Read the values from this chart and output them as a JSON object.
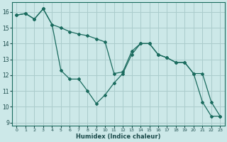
{
  "xlabel": "Humidex (Indice chaleur)",
  "background_color": "#cce8e8",
  "grid_color": "#aacccc",
  "line_color": "#1a6b5e",
  "xlim": [
    -0.5,
    23.5
  ],
  "ylim": [
    8.8,
    16.6
  ],
  "yticks": [
    9,
    10,
    11,
    12,
    13,
    14,
    15,
    16
  ],
  "xticks": [
    0,
    1,
    2,
    3,
    4,
    5,
    6,
    7,
    8,
    9,
    10,
    11,
    12,
    13,
    14,
    15,
    16,
    17,
    18,
    19,
    20,
    21,
    22,
    23
  ],
  "line1_x": [
    0,
    1,
    2,
    3,
    4,
    5,
    6,
    7,
    8,
    9,
    10,
    11,
    12,
    13,
    14,
    15,
    16,
    17,
    18,
    19,
    20,
    21,
    22,
    23
  ],
  "line1_y": [
    15.8,
    15.9,
    15.55,
    16.2,
    15.2,
    15.0,
    14.75,
    14.6,
    14.5,
    14.3,
    14.1,
    12.1,
    12.2,
    13.5,
    14.0,
    14.0,
    13.3,
    13.1,
    12.8,
    12.8,
    12.1,
    12.1,
    10.3,
    9.4
  ],
  "line2_x": [
    0,
    1,
    2,
    3,
    4,
    5,
    6,
    7,
    8,
    9,
    10,
    11,
    12,
    13,
    14,
    15,
    16,
    17,
    18,
    19,
    20,
    21,
    22,
    23
  ],
  "line2_y": [
    15.8,
    15.9,
    15.55,
    16.2,
    15.2,
    12.3,
    11.75,
    11.75,
    11.0,
    10.2,
    10.75,
    11.5,
    12.1,
    13.3,
    14.0,
    14.0,
    13.3,
    13.1,
    12.8,
    12.8,
    12.1,
    10.3,
    9.4,
    9.4
  ]
}
